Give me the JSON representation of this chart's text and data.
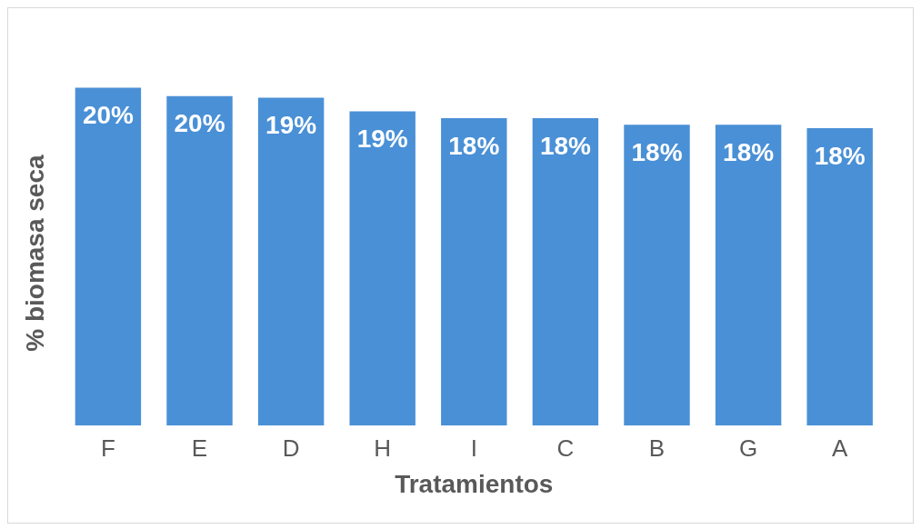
{
  "chart_data": {
    "type": "bar",
    "xlabel": "Tratamientos",
    "ylabel": "% biomasa seca",
    "categories": [
      "F",
      "E",
      "D",
      "H",
      "I",
      "C",
      "B",
      "G",
      "A"
    ],
    "values": [
      20.0,
      19.5,
      19.4,
      18.6,
      18.2,
      18.2,
      17.8,
      17.8,
      17.6
    ],
    "value_labels": [
      "20%",
      "20%",
      "19%",
      "19%",
      "18%",
      "18%",
      "18%",
      "18%",
      "18%"
    ],
    "color": "#4a90d6",
    "grid": false,
    "legend": false
  }
}
